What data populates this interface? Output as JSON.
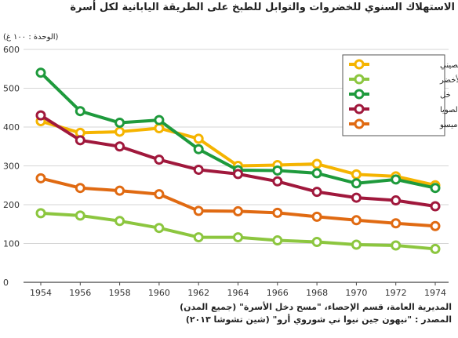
{
  "chart_data": {
    "type": "line",
    "title": "الاستهلاك السنوي للخضروات والتوابل للطبخ على الطريقة اليابانية لكل أسرة",
    "unit_label": "(الوحدة : ١٠٠ غ)",
    "x": [
      1954,
      1956,
      1958,
      1960,
      1962,
      1964,
      1966,
      1968,
      1970,
      1972,
      1974
    ],
    "ylim": [
      0,
      600
    ],
    "yticks": [
      0,
      100,
      200,
      300,
      400,
      500,
      600
    ],
    "grid": true,
    "legend_position": "top-right",
    "series": [
      {
        "name": "الملفوف الصيني",
        "color": "#f5b400",
        "values": [
          415,
          385,
          388,
          397,
          370,
          300,
          302,
          305,
          278,
          273,
          250
        ]
      },
      {
        "name": "البصل الأخضر",
        "color": "#8cc63f",
        "values": [
          178,
          172,
          158,
          140,
          116,
          116,
          108,
          104,
          97,
          95,
          86
        ]
      },
      {
        "name": "خل",
        "color": "#1e9a3c",
        "values": [
          540,
          441,
          411,
          418,
          343,
          289,
          288,
          281,
          255,
          265,
          243
        ]
      },
      {
        "name": "صلصة الصويا",
        "color": "#a0183c",
        "values": [
          430,
          366,
          350,
          316,
          290,
          279,
          260,
          233,
          218,
          211,
          196
        ]
      },
      {
        "name": "ميسو",
        "color": "#e06a12",
        "values": [
          268,
          243,
          236,
          227,
          184,
          183,
          179,
          169,
          160,
          152,
          145
        ]
      }
    ]
  },
  "source": {
    "line1": "المديرية العامة، قسم الإحصاء، \"مسح دخل الأسرة\" (جميع المدن)",
    "line2": "المصدر : \"نيهون جين نيوا ني شوروي أرو\" (شين تشوشا ٢٠١٣)"
  }
}
